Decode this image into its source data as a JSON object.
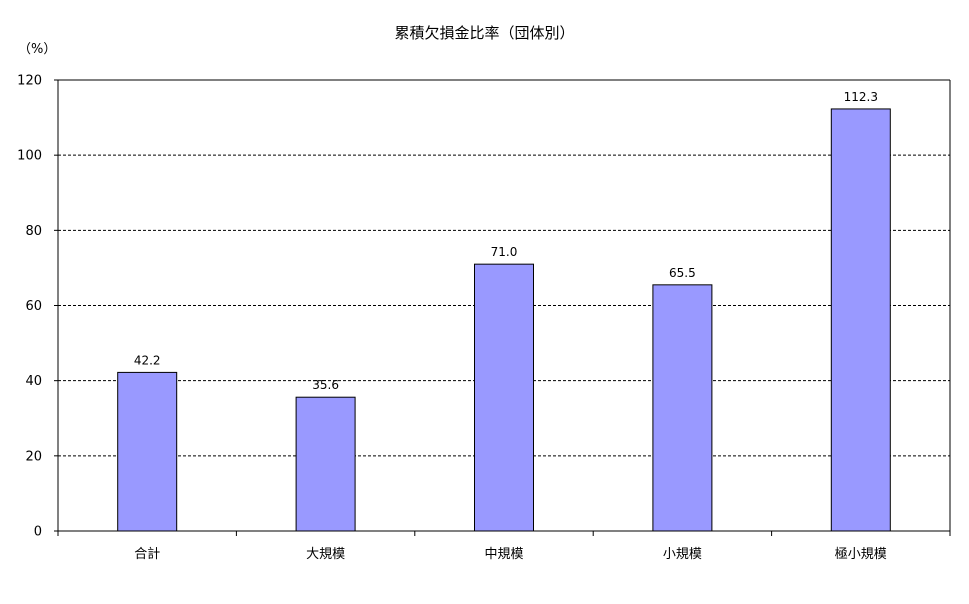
{
  "chart_data": {
    "type": "bar",
    "title": "累積欠損金比率（団体別）",
    "y_unit": "（%）",
    "xlabel": "",
    "ylabel": "",
    "categories": [
      "合計",
      "大規模",
      "中規模",
      "小規模",
      "極小規模"
    ],
    "values": [
      42.2,
      35.6,
      71.0,
      65.5,
      112.3
    ],
    "value_labels": [
      "42.2",
      "35.6",
      "71.0",
      "65.5",
      "112.3"
    ],
    "ylim": [
      0,
      120
    ],
    "yticks": [
      0,
      20,
      40,
      60,
      80,
      100,
      120
    ],
    "grid": true,
    "bar_color": "#9999ff",
    "legend": false
  }
}
